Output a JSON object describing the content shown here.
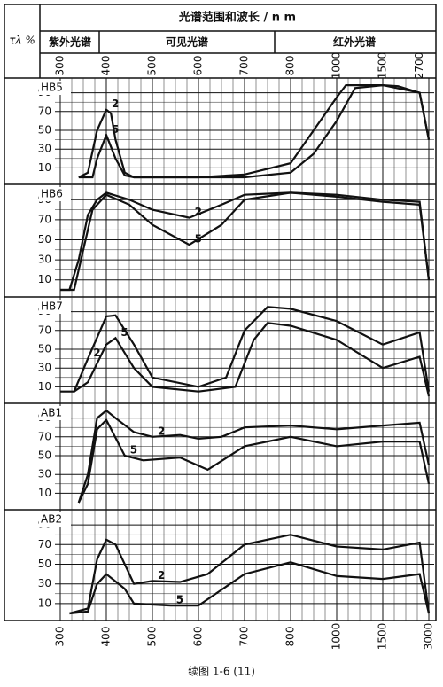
{
  "header": {
    "title": "光谱范围和波长 / n m",
    "y_unit": "τλ %",
    "regions": [
      "紫外光谱",
      "可见光谱",
      "红外光谱"
    ],
    "wavelength_ticks": [
      300,
      400,
      500,
      600,
      700,
      800,
      1000,
      1500,
      2700
    ]
  },
  "chart_data": [
    {
      "type": "line",
      "title": "HB5",
      "xlim": [
        300,
        3000
      ],
      "xticks": [
        300,
        400,
        500,
        600,
        700,
        800,
        1000,
        1500,
        3000
      ],
      "ylim": [
        0,
        100
      ],
      "yticks": [
        10,
        30,
        50,
        70,
        90
      ],
      "grid": true,
      "color": "#111",
      "series": [
        {
          "name": "2",
          "x": [
            340,
            360,
            380,
            400,
            410,
            420,
            440,
            460,
            500,
            600,
            700,
            800,
            900,
            1000,
            1100,
            1500,
            2000,
            2700,
            3000
          ],
          "values": [
            0,
            5,
            50,
            72,
            68,
            40,
            5,
            0,
            0,
            0,
            3,
            15,
            50,
            85,
            98,
            98,
            97,
            90,
            40
          ]
        },
        {
          "name": "5",
          "x": [
            340,
            370,
            380,
            400,
            420,
            440,
            460,
            700,
            800,
            900,
            1000,
            1200,
            1500,
            2700,
            3000
          ],
          "values": [
            0,
            0,
            20,
            45,
            20,
            2,
            0,
            0,
            5,
            25,
            60,
            95,
            98,
            90,
            40
          ]
        }
      ]
    },
    {
      "type": "line",
      "title": "HB6",
      "xlim": [
        300,
        3000
      ],
      "xticks": [
        300,
        400,
        500,
        600,
        700,
        800,
        1000,
        1500,
        3000
      ],
      "ylim": [
        0,
        100
      ],
      "yticks": [
        10,
        30,
        50,
        70,
        90
      ],
      "grid": true,
      "color": "#111",
      "series": [
        {
          "name": "2",
          "x": [
            300,
            320,
            340,
            360,
            380,
            400,
            450,
            500,
            580,
            650,
            700,
            800,
            1000,
            1500,
            2700,
            3000
          ],
          "values": [
            0,
            0,
            30,
            75,
            90,
            97,
            90,
            80,
            72,
            85,
            95,
            97,
            95,
            90,
            88,
            10
          ]
        },
        {
          "name": "5",
          "x": [
            300,
            330,
            350,
            370,
            400,
            450,
            500,
            580,
            650,
            700,
            800,
            1000,
            1500,
            2700,
            3000
          ],
          "values": [
            0,
            0,
            40,
            80,
            95,
            85,
            65,
            45,
            65,
            90,
            97,
            93,
            88,
            85,
            10
          ]
        }
      ]
    },
    {
      "type": "line",
      "title": "HB7",
      "xlim": [
        300,
        3000
      ],
      "xticks": [
        300,
        400,
        500,
        600,
        700,
        800,
        1000,
        1500,
        3000
      ],
      "ylim": [
        0,
        100
      ],
      "yticks": [
        10,
        30,
        50,
        70,
        90
      ],
      "grid": true,
      "color": "#111",
      "series": [
        {
          "name": "2",
          "x": [
            300,
            330,
            360,
            400,
            420,
            460,
            500,
            600,
            660,
            700,
            750,
            800,
            1000,
            1500,
            2700,
            3000
          ],
          "values": [
            5,
            5,
            40,
            85,
            86,
            55,
            20,
            10,
            20,
            70,
            95,
            93,
            80,
            55,
            68,
            5
          ]
        },
        {
          "name": "5",
          "x": [
            330,
            360,
            400,
            420,
            460,
            500,
            600,
            680,
            720,
            750,
            800,
            1000,
            1500,
            2700,
            3000
          ],
          "values": [
            5,
            15,
            55,
            62,
            30,
            10,
            5,
            10,
            60,
            78,
            75,
            60,
            30,
            42,
            0
          ]
        }
      ]
    },
    {
      "type": "line",
      "title": "AB1",
      "xlim": [
        300,
        3000
      ],
      "xticks": [
        300,
        400,
        500,
        600,
        700,
        800,
        1000,
        1500,
        3000
      ],
      "ylim": [
        0,
        100
      ],
      "yticks": [
        10,
        30,
        50,
        70,
        90
      ],
      "grid": true,
      "color": "#111",
      "series": [
        {
          "name": "2",
          "x": [
            340,
            360,
            380,
            400,
            420,
            460,
            500,
            560,
            600,
            650,
            700,
            800,
            1000,
            1500,
            2700,
            3000
          ],
          "values": [
            0,
            30,
            90,
            98,
            90,
            75,
            70,
            72,
            68,
            70,
            80,
            82,
            78,
            82,
            85,
            40
          ]
        },
        {
          "name": "5",
          "x": [
            340,
            360,
            380,
            400,
            440,
            480,
            560,
            620,
            700,
            800,
            1000,
            1500,
            2700,
            3000
          ],
          "values": [
            0,
            20,
            78,
            88,
            50,
            45,
            48,
            35,
            60,
            70,
            60,
            65,
            65,
            20
          ]
        }
      ]
    },
    {
      "type": "line",
      "title": "AB2",
      "xlim": [
        300,
        3000
      ],
      "xticks": [
        300,
        400,
        500,
        600,
        700,
        800,
        1000,
        1500,
        3000
      ],
      "ylim": [
        0,
        100
      ],
      "yticks": [
        10,
        30,
        50,
        70,
        90
      ],
      "grid": true,
      "color": "#111",
      "series": [
        {
          "name": "2",
          "x": [
            320,
            360,
            380,
            400,
            420,
            460,
            500,
            560,
            620,
            700,
            800,
            1000,
            1500,
            2700,
            3000
          ],
          "values": [
            0,
            5,
            55,
            75,
            70,
            30,
            33,
            32,
            40,
            70,
            80,
            68,
            65,
            72,
            0
          ]
        },
        {
          "name": "5",
          "x": [
            320,
            360,
            380,
            400,
            440,
            460,
            540,
            600,
            700,
            800,
            1000,
            1500,
            2700,
            3000
          ],
          "values": [
            0,
            2,
            30,
            40,
            25,
            10,
            8,
            8,
            40,
            52,
            38,
            35,
            40,
            0
          ]
        }
      ]
    }
  ],
  "caption": "续图 1-6 (11)"
}
